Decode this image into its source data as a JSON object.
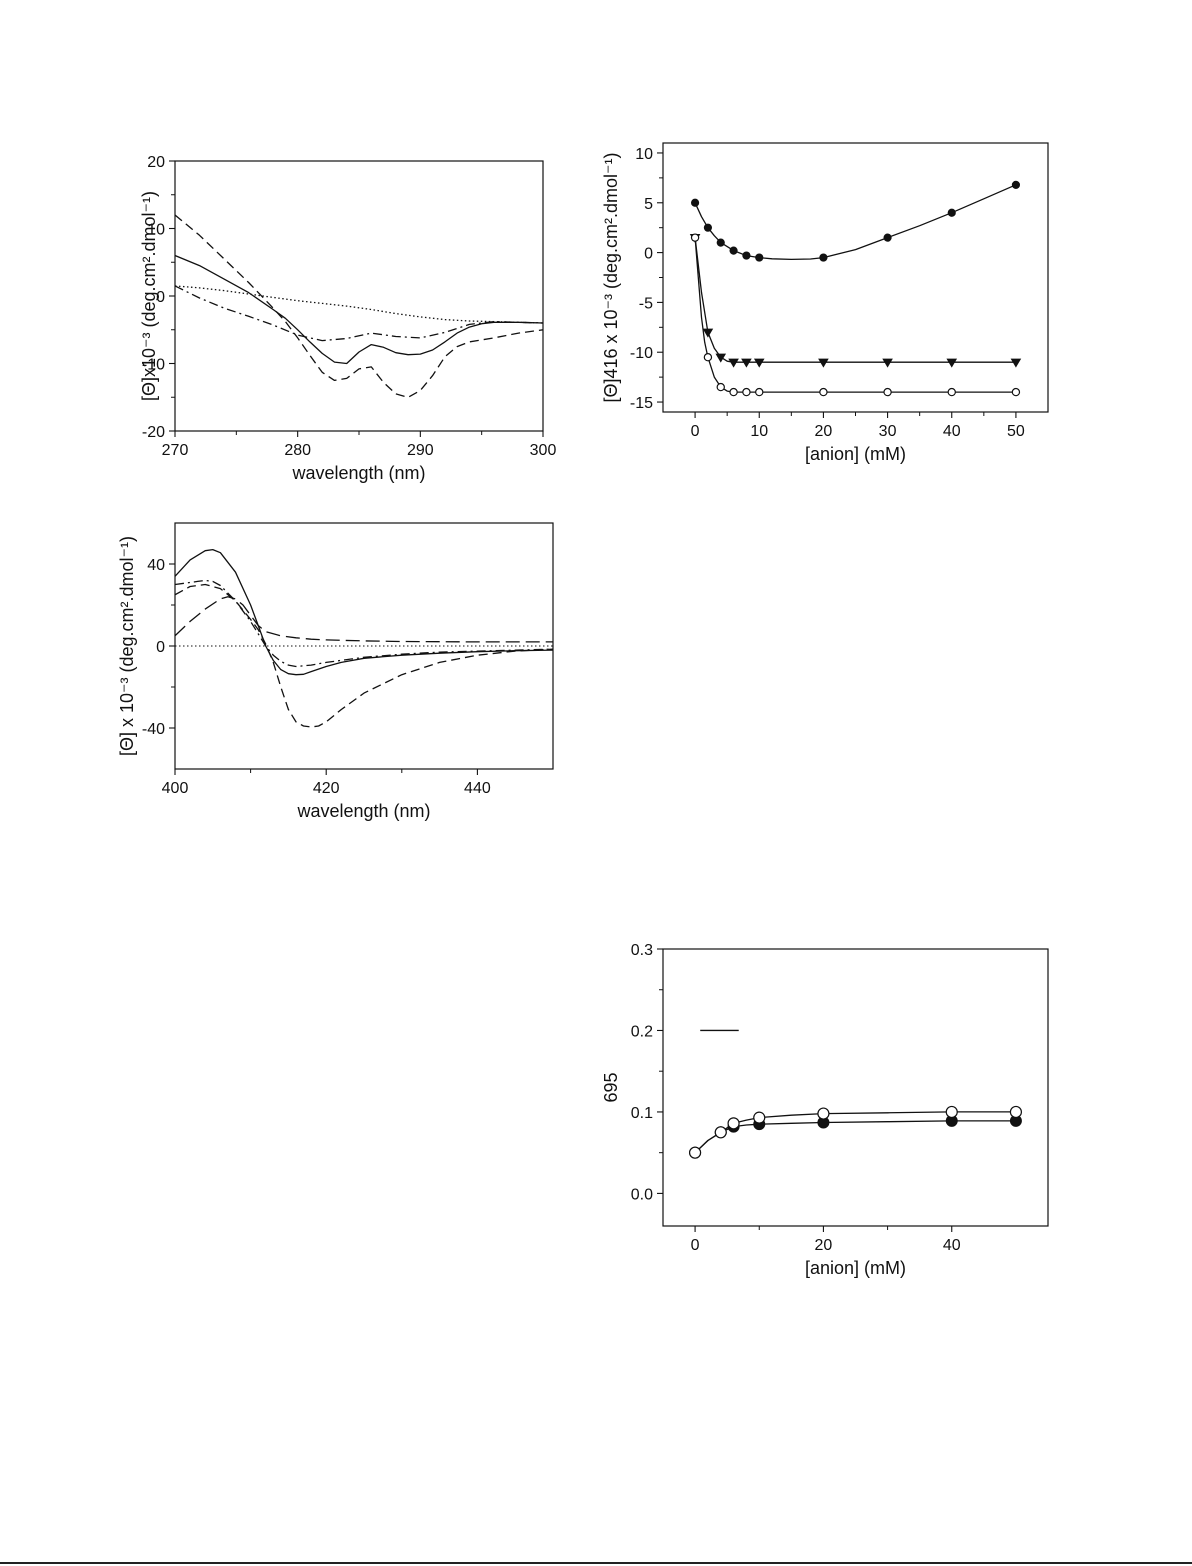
{
  "chart_data": [
    {
      "id": "cd-near-uv",
      "type": "line",
      "title": "",
      "xlabel": "wavelength (nm)",
      "ylabel": "[Θ]x10⁻³ (deg.cm².dmol⁻¹)",
      "xlim": [
        270,
        300
      ],
      "ylim": [
        -20,
        20
      ],
      "xticks": [
        270,
        280,
        290,
        300
      ],
      "yticks": [
        -20,
        -10,
        0,
        10,
        20
      ],
      "grid": false,
      "series": [
        {
          "name": "dashed",
          "style": "dashed",
          "x": [
            270,
            272,
            274,
            276,
            278,
            279,
            280,
            281,
            282,
            283,
            284,
            285,
            286,
            287,
            288,
            289,
            290,
            291,
            292,
            293,
            294,
            295,
            296,
            298,
            300
          ],
          "y": [
            12,
            9,
            5.5,
            2,
            -1.8,
            -3.8,
            -6.2,
            -8.8,
            -11.3,
            -12.5,
            -12.2,
            -10.8,
            -10.5,
            -12.8,
            -14.5,
            -15,
            -14,
            -11.8,
            -9,
            -7.5,
            -6.8,
            -6.5,
            -6.2,
            -5.5,
            -5
          ]
        },
        {
          "name": "solid",
          "style": "solid",
          "x": [
            270,
            272,
            274,
            276,
            278,
            279,
            280,
            281,
            282,
            283,
            284,
            285,
            286,
            287,
            288,
            289,
            290,
            291,
            292,
            293,
            294,
            295,
            296,
            298,
            300
          ],
          "y": [
            6,
            4.5,
            2.5,
            0.5,
            -2,
            -3.3,
            -5,
            -6.8,
            -8.5,
            -9.8,
            -10,
            -8.3,
            -7.2,
            -7.6,
            -8.4,
            -8.7,
            -8.6,
            -8,
            -6.8,
            -5.5,
            -4.6,
            -4.1,
            -3.9,
            -3.9,
            -4
          ]
        },
        {
          "name": "dotted",
          "style": "dotted",
          "x": [
            270,
            272,
            274,
            276,
            278,
            280,
            282,
            284,
            286,
            288,
            290,
            292,
            294,
            296,
            298,
            300
          ],
          "y": [
            1.5,
            1.2,
            0.8,
            0.3,
            -0.2,
            -0.7,
            -1.1,
            -1.5,
            -2,
            -2.6,
            -3.1,
            -3.5,
            -3.7,
            -3.8,
            -3.9,
            -4
          ]
        },
        {
          "name": "dash-dot",
          "style": "dashdot",
          "x": [
            270,
            272,
            274,
            276,
            278,
            280,
            282,
            284,
            286,
            288,
            290,
            292,
            294,
            296,
            298,
            300
          ],
          "y": [
            1.5,
            -0.3,
            -1.8,
            -3,
            -4.3,
            -5.8,
            -6.6,
            -6.3,
            -5.5,
            -6,
            -6.2,
            -5.4,
            -4.2,
            -3.8,
            -3.9,
            -4
          ]
        }
      ]
    },
    {
      "id": "cd-soret",
      "type": "line",
      "title": "",
      "xlabel": "wavelength (nm)",
      "ylabel": "[Θ] x 10⁻³ (deg.cm².dmol⁻¹)",
      "xlim": [
        400,
        450
      ],
      "ylim": [
        -60,
        60
      ],
      "xticks": [
        400,
        420,
        440
      ],
      "yticks": [
        -40,
        0,
        40
      ],
      "grid": false,
      "zero_line": true,
      "series": [
        {
          "name": "solid",
          "style": "solid",
          "x": [
            400,
            402,
            404,
            405,
            406,
            408,
            410,
            411,
            412,
            413,
            414,
            415,
            416,
            417,
            418,
            420,
            422,
            425,
            430,
            435,
            440,
            445,
            450
          ],
          "y": [
            34,
            42,
            46.5,
            47,
            45.5,
            36,
            20,
            10,
            0,
            -7,
            -11.5,
            -13.5,
            -14,
            -13.8,
            -12.5,
            -10,
            -8,
            -6,
            -4.5,
            -3.5,
            -2.8,
            -2.3,
            -2
          ]
        },
        {
          "name": "dashed",
          "style": "dashed",
          "x": [
            400,
            402,
            404,
            406,
            408,
            410,
            411,
            412,
            413,
            414,
            415,
            416,
            417,
            418,
            419,
            420,
            422,
            425,
            430,
            435,
            440,
            445,
            450
          ],
          "y": [
            25,
            29,
            30,
            28,
            22,
            13,
            8,
            1,
            -8,
            -20,
            -31,
            -37,
            -39,
            -39.5,
            -39,
            -37,
            -31,
            -23,
            -14,
            -8,
            -4.5,
            -2.5,
            -1.5
          ]
        },
        {
          "name": "dash-dot",
          "style": "dashdot",
          "x": [
            400,
            402,
            403,
            404,
            405,
            406,
            408,
            410,
            412,
            413,
            414,
            415,
            416,
            418,
            420,
            425,
            430,
            435,
            440,
            445,
            450
          ],
          "y": [
            30,
            31,
            31.5,
            32,
            31.5,
            29.5,
            22,
            12,
            0,
            -4.5,
            -7.5,
            -9.3,
            -10,
            -9.3,
            -8,
            -5.5,
            -4,
            -3,
            -2.5,
            -2,
            -1.5
          ]
        },
        {
          "name": "long-dash",
          "style": "longdash",
          "x": [
            400,
            402,
            404,
            406,
            407,
            408,
            409,
            410,
            411,
            412,
            414,
            416,
            418,
            420,
            425,
            430,
            440,
            450
          ],
          "y": [
            5,
            12,
            18,
            23,
            24,
            23,
            20,
            15,
            10,
            7,
            5,
            4,
            3.3,
            3,
            2.5,
            2.2,
            2,
            2
          ]
        }
      ]
    },
    {
      "id": "theta-416-vs-anion",
      "type": "scatter",
      "title": "",
      "xlabel": "[anion] (mM)",
      "ylabel": "[Θ]416 x 10⁻³ (deg.cm².dmol⁻¹)",
      "xlim": [
        -5,
        55
      ],
      "ylim": [
        -16,
        11
      ],
      "xticks": [
        0,
        10,
        20,
        30,
        40,
        50
      ],
      "yticks": [
        -15,
        -10,
        -5,
        0,
        5,
        10
      ],
      "grid": false,
      "series": [
        {
          "name": "filled circles",
          "marker": "filled-circle",
          "x": [
            0,
            2,
            4,
            6,
            8,
            10,
            20,
            30,
            40,
            50
          ],
          "y": [
            5,
            2.5,
            1,
            0.2,
            -0.3,
            -0.5,
            -0.5,
            1.5,
            4,
            6.8
          ],
          "curve_x": [
            0,
            1,
            2,
            3,
            4,
            6,
            8,
            10,
            12,
            15,
            18,
            20,
            25,
            30,
            35,
            40,
            45,
            50
          ],
          "curve_y": [
            5,
            3.6,
            2.5,
            1.7,
            1,
            0.2,
            -0.3,
            -0.5,
            -0.62,
            -0.68,
            -0.64,
            -0.5,
            0.3,
            1.5,
            2.7,
            4,
            5.4,
            6.8
          ]
        },
        {
          "name": "filled triangles",
          "marker": "filled-triangle",
          "x": [
            0,
            2,
            4,
            6,
            8,
            10,
            20,
            30,
            40,
            50
          ],
          "y": [
            1.5,
            -8,
            -10.5,
            -11,
            -11,
            -11,
            -11,
            -11,
            -11,
            -11
          ],
          "curve_x": [
            0,
            1,
            2,
            3,
            4,
            5,
            6,
            8,
            10,
            20,
            30,
            40,
            50
          ],
          "curve_y": [
            1.5,
            -4,
            -8,
            -9.6,
            -10.5,
            -10.9,
            -11,
            -11,
            -11,
            -11,
            -11,
            -11,
            -11
          ]
        },
        {
          "name": "open circles",
          "marker": "open-circle",
          "x": [
            0,
            2,
            4,
            6,
            8,
            10,
            20,
            30,
            40,
            50
          ],
          "y": [
            1.5,
            -10.5,
            -13.5,
            -14,
            -14,
            -14,
            -14,
            -14,
            -14,
            -14
          ],
          "curve_x": [
            0,
            0.5,
            1,
            1.5,
            2,
            3,
            4,
            5,
            6,
            8,
            10,
            20,
            30,
            40,
            50
          ],
          "curve_y": [
            1.5,
            -2.5,
            -6.5,
            -9,
            -10.5,
            -12.5,
            -13.5,
            -13.9,
            -14,
            -14,
            -14,
            -14,
            -14,
            -14,
            -14
          ]
        }
      ]
    },
    {
      "id": "a695-vs-anion",
      "type": "scatter",
      "title": "",
      "xlabel": "[anion] (mM)",
      "ylabel": "695",
      "xlim": [
        -5,
        55
      ],
      "ylim": [
        -0.04,
        0.3
      ],
      "xticks": [
        0,
        20,
        40
      ],
      "yticks": [
        0.0,
        0.1,
        0.2,
        0.3
      ],
      "ytick_labels": [
        "0.0",
        "0.1",
        "0.2",
        "0.3"
      ],
      "grid": false,
      "legend_line": true,
      "series": [
        {
          "name": "filled circles",
          "marker": "filled-circle",
          "x": [
            0,
            4,
            6,
            10,
            20,
            40,
            50
          ],
          "y": [
            0.05,
            0.075,
            0.082,
            0.085,
            0.087,
            0.089,
            0.089
          ],
          "curve_x": [
            0,
            2,
            4,
            6,
            8,
            10,
            15,
            20,
            30,
            40,
            50
          ],
          "curve_y": [
            0.05,
            0.065,
            0.075,
            0.082,
            0.084,
            0.085,
            0.086,
            0.087,
            0.088,
            0.089,
            0.089
          ]
        },
        {
          "name": "open circles",
          "marker": "open-circle",
          "x": [
            0,
            4,
            6,
            10,
            20,
            40,
            50
          ],
          "y": [
            0.05,
            0.075,
            0.086,
            0.093,
            0.098,
            0.1,
            0.1
          ],
          "curve_x": [
            0,
            2,
            4,
            6,
            8,
            10,
            15,
            20,
            30,
            40,
            50
          ],
          "curve_y": [
            0.05,
            0.065,
            0.075,
            0.086,
            0.09,
            0.093,
            0.096,
            0.098,
            0.099,
            0.1,
            0.1
          ]
        }
      ]
    }
  ]
}
